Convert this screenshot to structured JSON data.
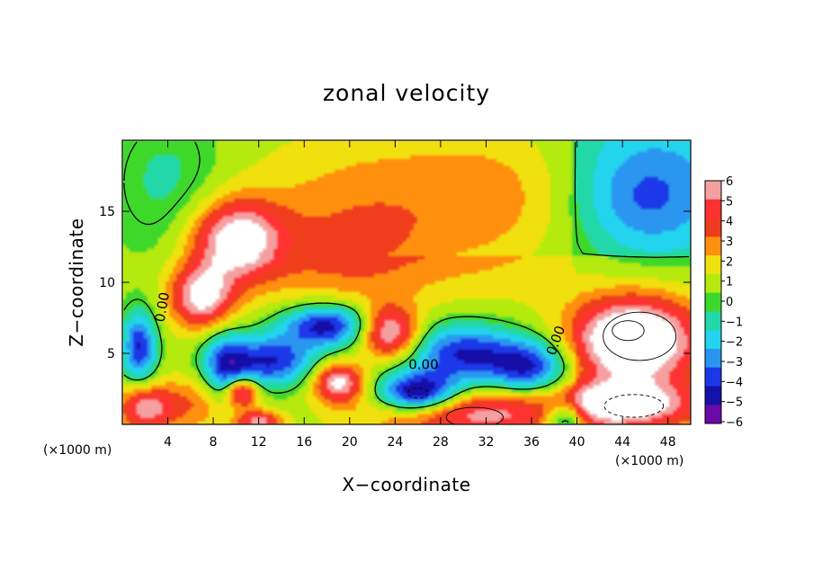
{
  "chart_data": {
    "type": "heatmap",
    "title": "zonal velocity",
    "xlabel": "X−coordinate",
    "ylabel": "Z−coordinate",
    "x_unit_label": "(×1000 m)",
    "x_unit_label_right": "(×1000 m)",
    "x_range": [
      0,
      50
    ],
    "y_range": [
      0,
      20
    ],
    "x_ticks": [
      4,
      8,
      12,
      16,
      20,
      24,
      28,
      32,
      36,
      40,
      44,
      48
    ],
    "x_tick_labels": [
      "4",
      "8",
      "12",
      "16",
      "20",
      "24",
      "28",
      "32",
      "36",
      "40",
      "44",
      "48"
    ],
    "y_ticks": [
      5,
      10,
      15
    ],
    "y_tick_labels": [
      "5",
      "10",
      "15"
    ],
    "colorbar": {
      "levels": [
        6,
        5,
        4,
        3,
        2,
        1,
        0,
        -1,
        -2,
        -3,
        -4,
        -5,
        -6
      ],
      "labels": [
        "6",
        "5",
        "4",
        "3",
        "2",
        "1",
        "0",
        "−1",
        "−2",
        "−3",
        "−4",
        "−5",
        "−6"
      ],
      "colors": [
        "#f5a0a0",
        "#ff3030",
        "#f03c1e",
        "#ff9010",
        "#f0e010",
        "#b4ea10",
        "#3cd82c",
        "#22d8a8",
        "#22d4ee",
        "#2a96f0",
        "#1a38e8",
        "#1410a8",
        "#6a08a8"
      ]
    },
    "contour_labels": [
      "0.00",
      "0.00",
      "0.00"
    ],
    "blobs": [
      {
        "x": 25,
        "z": 17,
        "rx": 14,
        "rz": 5,
        "v": 2.2
      },
      {
        "x": 34,
        "z": 15,
        "rx": 7,
        "rz": 6,
        "v": 1.4
      },
      {
        "x": 20,
        "z": 12,
        "rx": 9,
        "rz": 4,
        "v": 2.6
      },
      {
        "x": 10,
        "z": 13,
        "rx": 4,
        "rz": 2.8,
        "v": 6.5
      },
      {
        "x": 7,
        "z": 9,
        "rx": 2.8,
        "rz": 2.2,
        "v": 6.2
      },
      {
        "x": 23.5,
        "z": 6.5,
        "rx": 2.6,
        "rz": 1.8,
        "v": 6.4
      },
      {
        "x": 45,
        "z": 6,
        "rx": 5.5,
        "rz": 3,
        "v": 8.5
      },
      {
        "x": 44,
        "z": 1.5,
        "rx": 6,
        "rz": 1.6,
        "v": 6.2
      },
      {
        "x": 31,
        "z": 0.8,
        "rx": 9,
        "rz": 1.8,
        "v": 5.2
      },
      {
        "x": 19,
        "z": 3,
        "rx": 2.2,
        "rz": 1.4,
        "v": 6.2
      },
      {
        "x": 10.5,
        "z": 2.3,
        "rx": 1.4,
        "rz": 1,
        "v": 6.2
      },
      {
        "x": 2,
        "z": 1.2,
        "rx": 2.4,
        "rz": 1.6,
        "v": 5.2
      },
      {
        "x": 12,
        "z": 0.2,
        "rx": 2,
        "rz": 0.8,
        "v": 5
      },
      {
        "x": 6.5,
        "z": 1.5,
        "rx": 3.5,
        "rz": 2,
        "v": 2.6
      },
      {
        "x": 18,
        "z": 7,
        "rx": 4,
        "rz": 1.5,
        "v": -6.2
      },
      {
        "x": 13,
        "z": 4.5,
        "rx": 4,
        "rz": 1.8,
        "v": -5.5
      },
      {
        "x": 30,
        "z": 5,
        "rx": 5,
        "rz": 2.2,
        "v": -5.5
      },
      {
        "x": 26,
        "z": 2.2,
        "rx": 3.5,
        "rz": 1.4,
        "v": -7.5
      },
      {
        "x": 36,
        "z": 4,
        "rx": 3.5,
        "rz": 2,
        "v": -5.2
      },
      {
        "x": 1.5,
        "z": 5.5,
        "rx": 1.5,
        "rz": 2.5,
        "v": -5.5
      },
      {
        "x": 39,
        "z": 0.5,
        "rx": 2,
        "rz": 1.2,
        "v": -5
      },
      {
        "x": 9,
        "z": 4,
        "rx": 2,
        "rz": 2.5,
        "v": -4.5
      },
      {
        "x": 46,
        "z": 16,
        "rx": 6,
        "rz": 4,
        "v": -3.2
      },
      {
        "x": 4,
        "z": 17,
        "rx": 5,
        "rz": 5,
        "v": -1.8
      }
    ]
  }
}
